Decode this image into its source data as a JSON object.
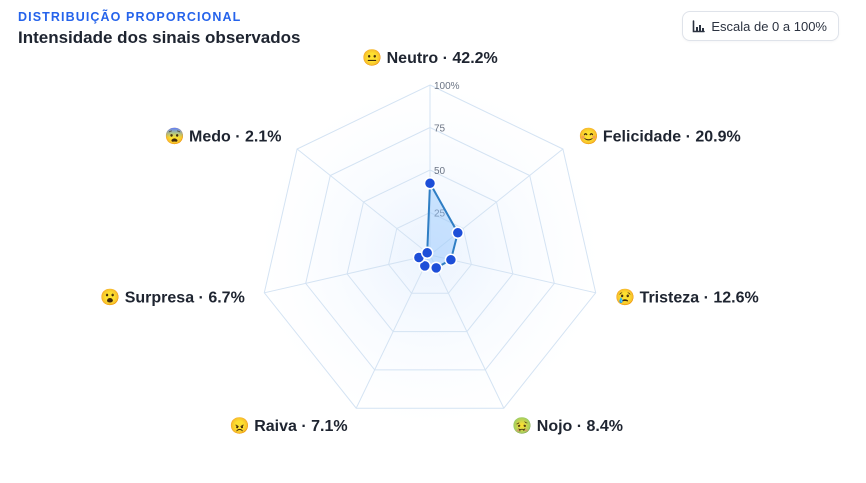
{
  "header": {
    "eyebrow": "DISTRIBUIÇÃO PROPORCIONAL",
    "title": "Intensidade dos sinais observados"
  },
  "scale_button": {
    "label": "Escala de 0 a 100%",
    "icon": "bar-chart-icon"
  },
  "colors": {
    "accent": "#2563eb",
    "point": "#1d4ed8",
    "stroke": "#2f7ec4",
    "area": "#93c5fd",
    "grid": "#d4e3f3"
  },
  "chart_data": {
    "type": "radar",
    "unit": "%",
    "range": [
      0,
      100
    ],
    "ticks": [
      25,
      50,
      75,
      100
    ],
    "tick_labels": [
      "25",
      "50",
      "75",
      "100%"
    ],
    "grid_levels": 4,
    "categories": [
      {
        "name": "Neutro",
        "emoji": "😐",
        "value": 42.2,
        "value_label": "42.2%"
      },
      {
        "name": "Felicidade",
        "emoji": "😊",
        "value": 20.9,
        "value_label": "20.9%"
      },
      {
        "name": "Tristeza",
        "emoji": "😢",
        "value": 12.6,
        "value_label": "12.6%"
      },
      {
        "name": "Nojo",
        "emoji": "🤢",
        "value": 8.4,
        "value_label": "8.4%"
      },
      {
        "name": "Raiva",
        "emoji": "😠",
        "value": 7.1,
        "value_label": "7.1%"
      },
      {
        "name": "Surpresa",
        "emoji": "😮",
        "value": 6.7,
        "value_label": "6.7%"
      },
      {
        "name": "Medo",
        "emoji": "😨",
        "value": 2.1,
        "value_label": "2.1%"
      }
    ]
  }
}
